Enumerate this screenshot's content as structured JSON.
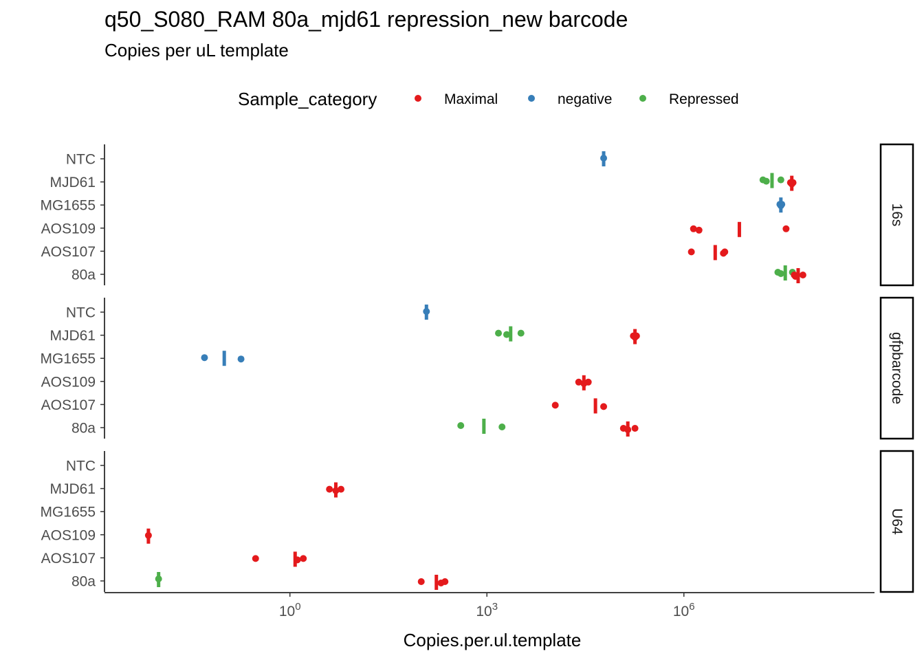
{
  "chart_data": {
    "type": "scatter",
    "title": "q50_S080_RAM 80a_mjd61 repression_new barcode",
    "subtitle": "Copies per uL template",
    "xlabel": "Copies.per.ul.template",
    "ylabel": "",
    "x_scale": "log10",
    "xlim": [
      0.0015,
      800000000
    ],
    "x_ticks": [
      {
        "value": 1,
        "base": "10",
        "exp": "0"
      },
      {
        "value": 1000,
        "base": "10",
        "exp": "3"
      },
      {
        "value": 1000000,
        "base": "10",
        "exp": "6"
      }
    ],
    "categories": [
      "NTC",
      "MJD61",
      "MG1655",
      "AOS109",
      "AOS107",
      "80a"
    ],
    "facets": [
      "16s",
      "gfpbarcode",
      "U64"
    ],
    "legend": {
      "title": "Sample_category",
      "position": "top",
      "entries": [
        {
          "name": "Maximal",
          "color": "#E41A1C"
        },
        {
          "name": "negative",
          "color": "#377EB8"
        },
        {
          "name": "Repressed",
          "color": "#4DAF4A"
        }
      ]
    },
    "grid": false,
    "panels": [
      {
        "facet": "16s",
        "points": [
          {
            "sample": "NTC",
            "category": "negative",
            "x": 60000,
            "values": [
              60000
            ],
            "median": 60000
          },
          {
            "sample": "MJD61",
            "category": "Repressed",
            "x": 20000000,
            "values": [
              16000000,
              18000000,
              30000000
            ],
            "median": 22000000
          },
          {
            "sample": "MJD61",
            "category": "Maximal",
            "x": 44000000,
            "values": [
              42000000,
              44000000,
              46000000
            ],
            "median": 44000000
          },
          {
            "sample": "MG1655",
            "category": "negative",
            "x": 30000000,
            "values": [
              29000000,
              30000000,
              31000000
            ],
            "median": 30000000
          },
          {
            "sample": "AOS109",
            "category": "Maximal",
            "x": 7000000,
            "values": [
              1400000,
              1700000,
              36000000
            ],
            "median": 7000000
          },
          {
            "sample": "AOS107",
            "category": "Maximal",
            "x": 1300000,
            "values": [
              1300000,
              4000000,
              4200000
            ],
            "median": 3000000
          },
          {
            "sample": "80a",
            "category": "Repressed",
            "x": 30000000,
            "values": [
              27000000,
              30000000,
              45000000
            ],
            "median": 35000000
          },
          {
            "sample": "80a",
            "category": "Maximal",
            "x": 50000000,
            "values": [
              48000000,
              50000000,
              65000000
            ],
            "median": 55000000
          }
        ]
      },
      {
        "facet": "gfpbarcode",
        "points": [
          {
            "sample": "NTC",
            "category": "negative",
            "x": 120,
            "values": [
              120
            ],
            "median": 120
          },
          {
            "sample": "MJD61",
            "category": "Repressed",
            "x": 2000,
            "values": [
              1500,
              2000,
              3300
            ],
            "median": 2300
          },
          {
            "sample": "MJD61",
            "category": "Maximal",
            "x": 180000,
            "values": [
              170000,
              180000,
              190000
            ],
            "median": 180000
          },
          {
            "sample": "MG1655",
            "category": "negative",
            "x": 0.05,
            "values": [
              0.05,
              0.18
            ],
            "median": 0.1
          },
          {
            "sample": "AOS109",
            "category": "Maximal",
            "x": 30000,
            "values": [
              25000,
              30000,
              35000
            ],
            "median": 30000
          },
          {
            "sample": "AOS107",
            "category": "Maximal",
            "x": 11000,
            "values": [
              11000,
              60000
            ],
            "median": 45000
          },
          {
            "sample": "80a",
            "category": "Repressed",
            "x": 400,
            "values": [
              400,
              1700
            ],
            "median": 900
          },
          {
            "sample": "80a",
            "category": "Maximal",
            "x": 120000,
            "values": [
              120000,
              140000,
              180000
            ],
            "median": 140000
          }
        ]
      },
      {
        "facet": "U64",
        "points": [
          {
            "sample": "MJD61",
            "category": "Maximal",
            "x": 5,
            "values": [
              4,
              5,
              6
            ],
            "median": 5
          },
          {
            "sample": "AOS109",
            "category": "Maximal",
            "x": 0.007,
            "values": [
              0.007
            ],
            "median": 0.007
          },
          {
            "sample": "AOS107",
            "category": "Maximal",
            "x": 0.3,
            "values": [
              0.3,
              1.3,
              1.6
            ],
            "median": 1.2
          },
          {
            "sample": "80a",
            "category": "Repressed",
            "x": 0.01,
            "values": [
              0.01
            ],
            "median": 0.01
          },
          {
            "sample": "80a",
            "category": "Maximal",
            "x": 100,
            "values": [
              100,
              200,
              230
            ],
            "median": 170
          }
        ]
      }
    ]
  }
}
